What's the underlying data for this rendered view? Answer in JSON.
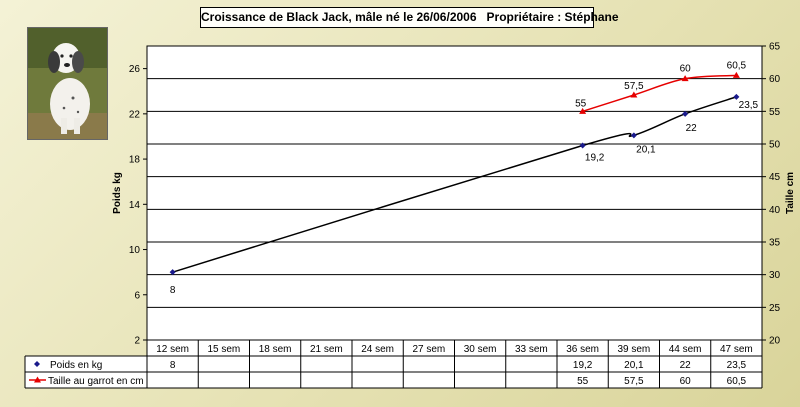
{
  "title": "Croissance de Black Jack, mâle né le 26/06/2006   Propriétaire : Stéphane",
  "photo": {
    "icon": "setter-puppy-photo"
  },
  "chart_data": {
    "type": "line",
    "categories": [
      "12 sem",
      "15 sem",
      "18 sem",
      "21 sem",
      "24 sem",
      "27 sem",
      "30 sem",
      "33 sem",
      "36 sem",
      "39 sem",
      "44 sem",
      "47 sem"
    ],
    "ylabel": "Poids kg",
    "y2label": "Taille cm",
    "ylim": [
      2,
      28
    ],
    "yticks": [
      2,
      6,
      10,
      14,
      18,
      22,
      26
    ],
    "y2lim": [
      20,
      65
    ],
    "y2ticks": [
      20,
      25,
      30,
      35,
      40,
      45,
      50,
      55,
      60,
      65
    ],
    "grid": true,
    "legend": "bottom-left",
    "series": [
      {
        "name": "Poids en kg",
        "axis": "left",
        "color": "#000000",
        "marker": "diamond",
        "smooth": true,
        "values": [
          8,
          null,
          null,
          null,
          null,
          null,
          null,
          null,
          19.2,
          20.1,
          22,
          23.5
        ],
        "labels": [
          "8",
          "",
          "",
          "",
          "",
          "",
          "",
          "",
          "19,2",
          "20,1",
          "22",
          "23,5"
        ]
      },
      {
        "name": "Taille au garrot en cm",
        "axis": "right",
        "color": "#e60000",
        "marker": "triangle",
        "smooth": true,
        "values": [
          null,
          null,
          null,
          null,
          null,
          null,
          null,
          null,
          55,
          57.5,
          60,
          60.5
        ],
        "labels": [
          "",
          "",
          "",
          "",
          "",
          "",
          "",
          "",
          "55",
          "57,5",
          "60",
          "60,5"
        ]
      }
    ]
  }
}
